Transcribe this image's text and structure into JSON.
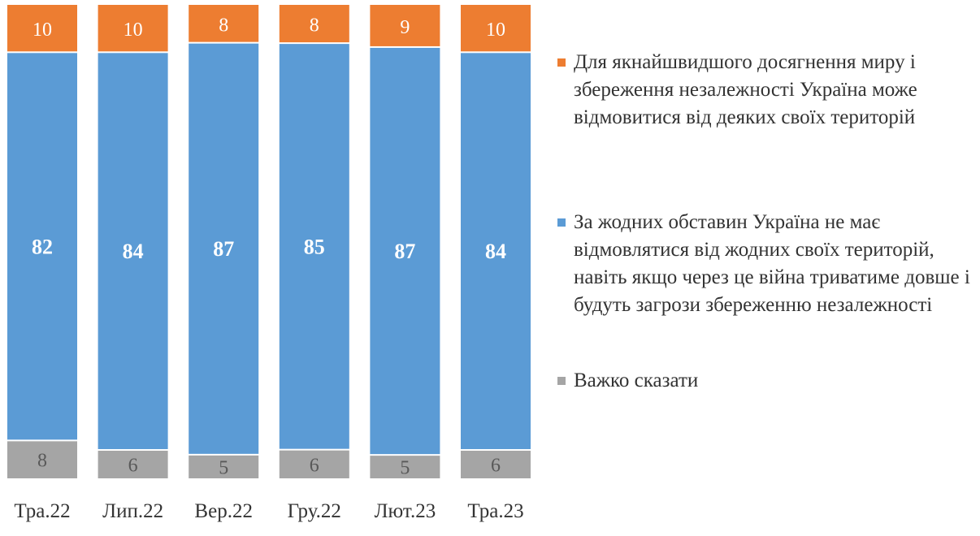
{
  "chart_data": {
    "type": "bar",
    "stacked": true,
    "normalized_to_100": true,
    "categories": [
      "Тра.22",
      "Лип.22",
      "Вер.22",
      "Гру.22",
      "Лют.23",
      "Тра.23"
    ],
    "series": [
      {
        "name": "Важко сказати",
        "color": "#A5A5A5",
        "values": [
          8,
          6,
          5,
          6,
          5,
          6
        ]
      },
      {
        "name": "За жодних обставин Україна не має відмовлятися від жодних своїх територій, навіть якщо через це війна триватиме довше і будуть загрози збереженню незалежності",
        "color": "#5B9BD5",
        "values": [
          82,
          84,
          87,
          85,
          87,
          84
        ]
      },
      {
        "name": "Для якнайшвидшого досягнення миру і збереження незалежності Україна може відмовитися від деяких своїх територій",
        "color": "#ED7D31",
        "values": [
          10,
          10,
          8,
          8,
          9,
          10
        ]
      }
    ],
    "legend_order": [
      2,
      1,
      0
    ],
    "legend_position": "right",
    "grid": false,
    "title": "",
    "xlabel": "",
    "ylabel": ""
  }
}
